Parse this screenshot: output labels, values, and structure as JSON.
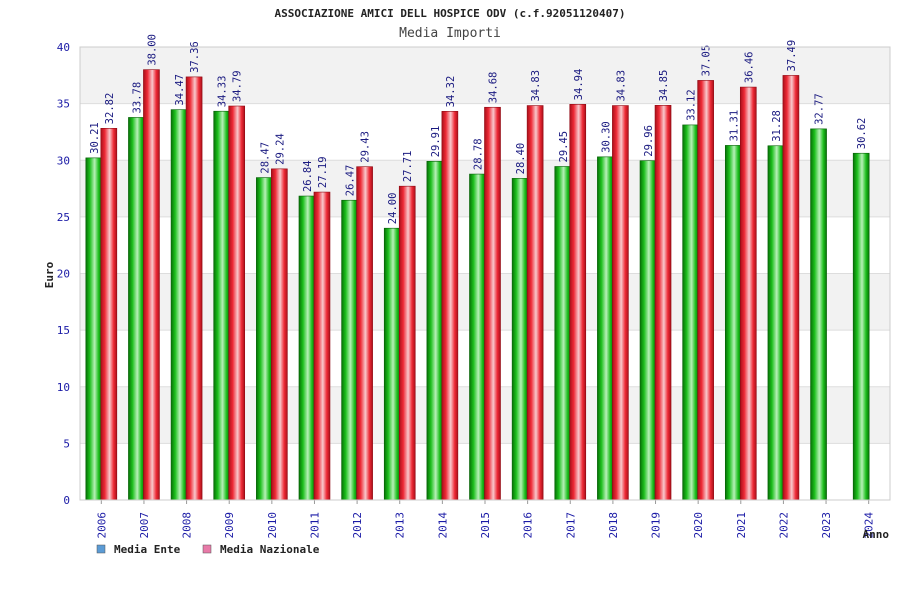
{
  "chart_data": {
    "type": "bar",
    "title": "ASSOCIAZIONE AMICI DELL HOSPICE ODV (c.f.92051120407)",
    "subtitle": "Media Importi",
    "xlabel": "Anno",
    "ylabel": "Euro",
    "ylim": [
      0,
      40
    ],
    "yticks": [
      0,
      5,
      10,
      15,
      20,
      25,
      30,
      35,
      40
    ],
    "grid": true,
    "legend_position": "bottom-left",
    "categories": [
      "2006",
      "2007",
      "2008",
      "2009",
      "2010",
      "2011",
      "2012",
      "2013",
      "2014",
      "2015",
      "2016",
      "2017",
      "2018",
      "2019",
      "2020",
      "2021",
      "2022",
      "2023",
      "2024"
    ],
    "series": [
      {
        "name": "Media Ente",
        "legend_color": "#5b9bd5",
        "bar_color": "#10a810",
        "values": [
          30.21,
          33.78,
          34.47,
          34.33,
          28.47,
          26.84,
          26.47,
          24.0,
          29.91,
          28.78,
          28.4,
          29.45,
          30.3,
          29.96,
          33.12,
          31.31,
          31.28,
          32.77,
          30.62
        ],
        "labels": [
          "30.21",
          "33.78",
          "34.47",
          "34.33",
          "28.47",
          "26.84",
          "26.47",
          "24.00",
          "29.91",
          "28.78",
          "28.40",
          "29.45",
          "30.30",
          "29.96",
          "33.12",
          "31.31",
          "31.28",
          "32.77",
          "30.62"
        ]
      },
      {
        "name": "Media Nazionale",
        "legend_color": "#e87aa8",
        "bar_color": "#e8202c",
        "values": [
          32.82,
          38.0,
          37.36,
          34.79,
          29.24,
          27.19,
          29.43,
          27.71,
          34.32,
          34.68,
          34.83,
          34.94,
          34.83,
          34.85,
          37.05,
          36.46,
          37.49,
          null,
          null
        ],
        "labels": [
          "32.82",
          "38.00",
          "37.36",
          "34.79",
          "29.24",
          "27.19",
          "29.43",
          "27.71",
          "34.32",
          "34.68",
          "34.83",
          "34.94",
          "34.83",
          "34.85",
          "37.05",
          "36.46",
          "37.49",
          "",
          ""
        ]
      }
    ]
  }
}
